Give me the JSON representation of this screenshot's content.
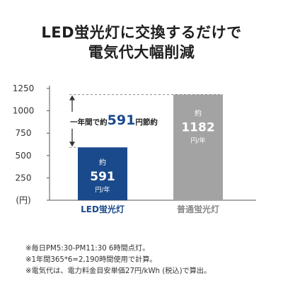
{
  "headline": {
    "line1": "LED蛍光灯に交換するだけで",
    "line2": "電気代大幅削減"
  },
  "chart_data": {
    "type": "bar",
    "categories": [
      "LED蛍光灯",
      "普通蛍光灯"
    ],
    "values": [
      591,
      1182
    ],
    "colors": [
      "#1a4a8c",
      "#a3a3a3"
    ],
    "category_label_colors": [
      "#1a4a8c",
      "#8a8a8a"
    ],
    "bar_labels": [
      {
        "prefix": "約",
        "value": "591",
        "unit": "円/年"
      },
      {
        "prefix": "約",
        "value": "1182",
        "unit": "円/年"
      }
    ],
    "yticks": [
      0,
      250,
      500,
      750,
      1000,
      1250
    ],
    "ytick_labels": [
      "(円)",
      "250",
      "500",
      "750",
      "1000",
      "1250"
    ],
    "ylim": [
      0,
      1250
    ],
    "annotation": {
      "prefix": "一年間で約",
      "value": "591",
      "suffix": "円節約",
      "value_color": "#1a4a8c"
    }
  },
  "notes": [
    "※毎日PM5:30-PM11:30 6時間点灯。",
    "※1年間365*6=2,190時間使用で計算。",
    "※電気代は、電力料金目安単価27円/kWh (税込)で算出。"
  ]
}
